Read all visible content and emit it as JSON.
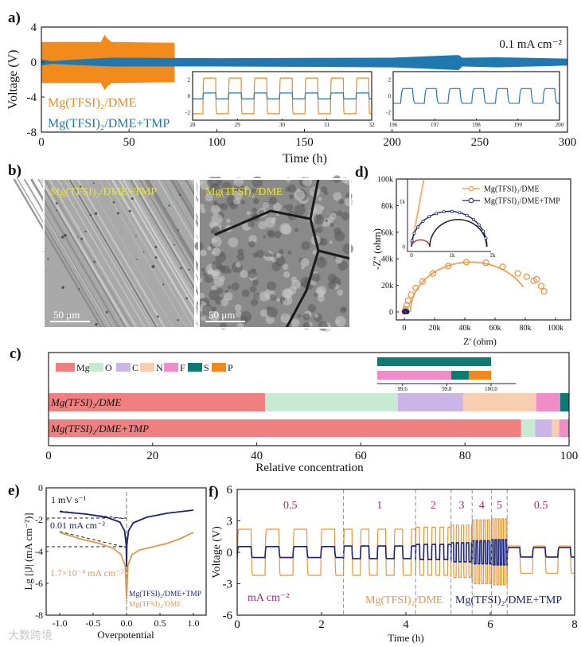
{
  "watermark": "大数跨境",
  "chart_data": [
    {
      "id": "a",
      "panel_label": "a)",
      "type": "line",
      "xlabel": "Time (h)",
      "ylabel": "Voltage (V)",
      "xlim": [
        0,
        300
      ],
      "ylim": [
        -8,
        4
      ],
      "xticks": [
        0,
        50,
        100,
        150,
        200,
        250,
        300
      ],
      "yticks": [
        4,
        0,
        -4,
        -8
      ],
      "annotation": "0.1 mA cm⁻²",
      "series": [
        {
          "name": "Mg(TFSI)₂/DME",
          "color": "#f28a1c",
          "envelope": {
            "t": [
              0,
              34,
              36,
              38,
              40,
              76
            ],
            "upper": [
              2.3,
              2.3,
              3.1,
              2.6,
              2.3,
              2.2
            ],
            "lower": [
              -2.4,
              -2.4,
              -3.2,
              -2.7,
              -2.4,
              -2.3
            ]
          }
        },
        {
          "name": "Mg(TFSI)₂/DME+TMP",
          "color": "#1f78b0",
          "envelope": {
            "t": [
              0,
              6,
              20,
              40,
              100,
              200,
              236,
              238,
              240,
              260,
              300
            ],
            "upper": [
              0.3,
              0.1,
              0.3,
              0.5,
              0.45,
              0.5,
              0.8,
              0.8,
              0.5,
              0.55,
              0.4
            ],
            "lower": [
              -0.4,
              -0.2,
              -0.35,
              -0.5,
              -0.5,
              -0.6,
              -0.9,
              -0.9,
              -0.5,
              -0.6,
              -0.4
            ]
          }
        }
      ],
      "insets": [
        {
          "xlim": [
            28,
            32
          ],
          "ylim": [
            -3,
            3
          ],
          "xticks": [
            28,
            29,
            30,
            31,
            32
          ],
          "yticks": [
            2,
            0,
            -2
          ],
          "series": [
            {
              "name": "Mg(TFSI)₂/DME",
              "color": "#f28a1c",
              "amplitude": 2.2,
              "period": 0.57,
              "phase": 0.3
            },
            {
              "name": "Mg(TFSI)₂/DME+TMP",
              "color": "#1f78b0",
              "amplitude": 0.35,
              "period": 0.57,
              "phase": 0.3
            }
          ]
        },
        {
          "xlim": [
            196,
            200
          ],
          "ylim": [
            -3,
            3
          ],
          "xticks": [
            196,
            197,
            198,
            199,
            200
          ],
          "yticks": [
            2,
            0,
            -2
          ],
          "series": [
            {
              "name": "Mg(TFSI)₂/DME+TMP",
              "color": "#1f78b0",
              "amplitude": 0.9,
              "period": 0.57,
              "phase": 0.1
            }
          ]
        }
      ]
    },
    {
      "id": "c",
      "panel_label": "c)",
      "type": "bar",
      "orientation": "horizontal-stacked",
      "xlabel": "Relative concentration",
      "xlim": [
        0,
        100
      ],
      "xticks": [
        0,
        20,
        40,
        60,
        80,
        100
      ],
      "legend": [
        {
          "name": "Mg",
          "color": "#f08080"
        },
        {
          "name": "O",
          "color": "#c8ead2"
        },
        {
          "name": "C",
          "color": "#c9b6e4"
        },
        {
          "name": "N",
          "color": "#f7cfb0"
        },
        {
          "name": "F",
          "color": "#f08cc8"
        },
        {
          "name": "S",
          "color": "#0e7b73"
        },
        {
          "name": "P",
          "color": "#f2881c"
        }
      ],
      "categories": [
        "Mg(TFSI)₂/DME",
        "Mg(TFSI)₂/DME+TMP"
      ],
      "values": [
        [
          41.6,
          25.5,
          12.6,
          14.0,
          4.6,
          1.7,
          0
        ],
        [
          90.8,
          2.7,
          3.2,
          1.4,
          1.72,
          0.08,
          0.1
        ]
      ],
      "inset": {
        "xlim": [
          99.48,
          100.1
        ],
        "xticks": [
          "99.6",
          "99.8",
          "100.0"
        ],
        "tick_values": [
          99.6,
          99.8,
          100.0
        ]
      }
    },
    {
      "id": "d",
      "panel_label": "d)",
      "type": "scatter",
      "xlabel": "Z' (ohm)",
      "ylabel": "-Z'' (ohm)",
      "xlim": [
        0,
        100000
      ],
      "ylim": [
        0,
        100000
      ],
      "xticks": [
        "0",
        "20k",
        "40k",
        "60k",
        "80k",
        "100k"
      ],
      "yticks": [
        "0",
        "20k",
        "40k",
        "60k",
        "80k",
        "100k"
      ],
      "series": [
        {
          "name": "Mg(TFSI)₂/DME",
          "color": "#e8923a",
          "x": [
            300,
            800,
            1500,
            2500,
            4500,
            7500,
            12000,
            19000,
            29000,
            41000,
            54000,
            65000,
            75000,
            81000,
            85500,
            87500,
            90500,
            92500
          ],
          "y": [
            500,
            2000,
            5000,
            8500,
            13000,
            18000,
            23000,
            29000,
            34500,
            37500,
            37000,
            34000,
            29000,
            26500,
            23500,
            24500,
            19500,
            15500
          ]
        },
        {
          "name": "Mg(TFSI)₂/DME+TMP",
          "color": "#1b2470",
          "x": [
            100,
            300,
            600,
            900,
            1200,
            1500,
            1800
          ],
          "y": [
            100,
            300,
            500,
            600,
            500,
            300,
            100
          ]
        }
      ],
      "inset": {
        "xlim": [
          0,
          2000
        ],
        "ylim": [
          0,
          1600
        ],
        "xticks": [
          "0",
          "1k",
          "2k"
        ],
        "yticks": [
          "0",
          "1k"
        ]
      }
    },
    {
      "id": "e",
      "panel_label": "e)",
      "type": "line",
      "xlabel": "Overpotential",
      "ylabel": "Lg [|J| (mA cm⁻²)]",
      "xlim": [
        -1.2,
        1.2
      ],
      "ylim": [
        -8,
        0
      ],
      "xticks": [
        "-1.0",
        "-0.5",
        "0.0",
        "0.5",
        "1.0"
      ],
      "xtick_values": [
        -1,
        -0.5,
        0,
        0.5,
        1
      ],
      "yticks": [
        "0",
        "-2",
        "-4",
        "-6",
        "-8"
      ],
      "ytick_values": [
        0,
        -2,
        -4,
        -6,
        -8
      ],
      "annotations": {
        "scan_rate": "1 mV s⁻¹",
        "j_tmp": "0.01 mA cm⁻²",
        "j_dme": "1.7×10⁻⁴ mA cm⁻²"
      },
      "series": [
        {
          "name": "Mg(TFSI)₂/DME+TMP",
          "color": "#1b2470",
          "x": [
            -1,
            -0.6,
            -0.3,
            -0.1,
            -0.03,
            -0.005,
            0,
            0.005,
            0.03,
            0.1,
            0.3,
            0.6,
            1
          ],
          "y": [
            -1.5,
            -1.65,
            -1.85,
            -2.15,
            -2.7,
            -3.6,
            -5.0,
            -3.6,
            -2.7,
            -2.2,
            -1.85,
            -1.6,
            -1.4
          ]
        },
        {
          "name": "Mg(TFSI)₂/DME",
          "color": "#d99a4e",
          "x": [
            -1,
            -0.7,
            -0.4,
            -0.2,
            -0.08,
            -0.02,
            0,
            0.02,
            0.08,
            0.2,
            0.4,
            0.6,
            0.8,
            1
          ],
          "y": [
            -2.8,
            -3.2,
            -3.5,
            -3.8,
            -4.2,
            -4.9,
            -7.0,
            -4.9,
            -4.2,
            -3.9,
            -3.7,
            -3.5,
            -3.2,
            -2.8
          ]
        }
      ],
      "guides_y": [
        -1.9,
        -3.7
      ]
    },
    {
      "id": "f",
      "panel_label": "f)",
      "type": "line",
      "xlabel": "Time (h)",
      "ylabel": "Voltage (V)",
      "xlim": [
        0,
        8
      ],
      "ylim": [
        -6,
        6
      ],
      "xticks": [
        0,
        2,
        4,
        6,
        8
      ],
      "yticks": [
        6,
        3,
        0,
        -3,
        -6
      ],
      "unit_label": "mA cm⁻²",
      "rate_color": "#a0306a",
      "segments": [
        {
          "rate": "0.5",
          "start": 0,
          "end": 2.52,
          "period": 0.66,
          "dme": [
            2.2,
            -2.2
          ],
          "tmp": [
            0.55,
            -0.5
          ]
        },
        {
          "rate": "1",
          "start": 2.52,
          "end": 4.23,
          "period": 0.4,
          "dme": [
            2.2,
            -2.2
          ],
          "tmp": [
            0.6,
            -0.6
          ]
        },
        {
          "rate": "2",
          "start": 4.23,
          "end": 5.07,
          "period": 0.19,
          "dme": [
            2.4,
            -2.2
          ],
          "tmp": [
            0.75,
            -0.7
          ]
        },
        {
          "rate": "3",
          "start": 5.07,
          "end": 5.57,
          "period": 0.12,
          "dme": [
            2.6,
            -2.4
          ],
          "tmp": [
            0.9,
            -0.9
          ]
        },
        {
          "rate": "4",
          "start": 5.57,
          "end": 6.03,
          "period": 0.09,
          "dme": [
            3.1,
            -3.0
          ],
          "tmp": [
            1.1,
            -1.1
          ]
        },
        {
          "rate": "5",
          "start": 6.03,
          "end": 6.4,
          "period": 0.08,
          "dme": [
            3.2,
            -3.1
          ],
          "tmp": [
            1.2,
            -1.2
          ]
        },
        {
          "rate": "0.5",
          "start": 6.4,
          "end": 8,
          "period": 0.6,
          "dme": [
            0.6,
            -2.0
          ],
          "tmp": [
            0.45,
            -0.45
          ]
        }
      ],
      "series": [
        {
          "name": "Mg(TFSI)₂/DME",
          "color": "#e8953a"
        },
        {
          "name": "Mg(TFSI)₂/DME+TMP",
          "color": "#1b2470"
        }
      ]
    }
  ],
  "panel_b": {
    "panel_label": "b)",
    "images": [
      {
        "label": "Mg(TFSI)₂/DME+TMP",
        "scale": "50 μm"
      },
      {
        "label": "Mg(TFSI)₂/DME",
        "scale": "50 μm"
      }
    ],
    "label_color": "#e6e23a"
  }
}
